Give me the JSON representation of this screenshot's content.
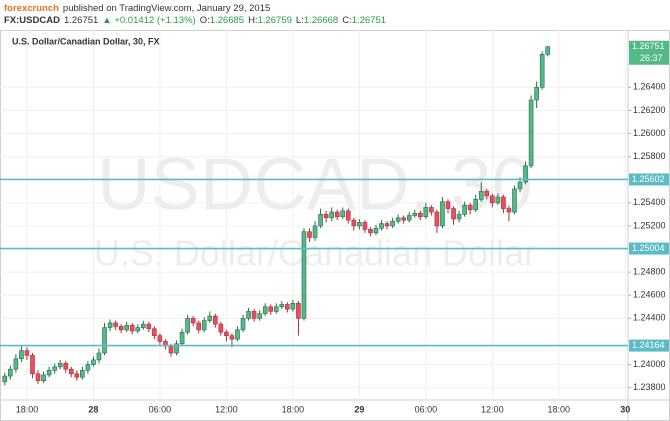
{
  "header": {
    "author": "forexcrunch",
    "published": "published on TradingView.com, January 29, 2015",
    "symbol": "FX:USDCAD",
    "last": "1.26751",
    "change": "▲ +0.01412 (+1.13%)",
    "ohlc": [
      {
        "label": "O:",
        "value": "1.26685"
      },
      {
        "label": "H:",
        "value": "1.26759"
      },
      {
        "label": "L:",
        "value": "1.26668"
      },
      {
        "label": "C:",
        "value": "1.26751"
      }
    ]
  },
  "chart_data": {
    "type": "candlestick",
    "title": "U.S. Dollar/Canadian Dollar, 30, FX",
    "watermark": [
      "USDCAD, 30",
      "U.S. Dollar/Canadian Dollar"
    ],
    "up_color": "#53b987",
    "down_color": "#eb4d5c",
    "level_color": "#5bbcc6",
    "countdown": "26:37",
    "categories": [
      null,
      null,
      null,
      null,
      "18:00",
      null,
      null,
      null,
      null,
      null,
      null,
      null,
      null,
      null,
      null,
      null,
      "28",
      null,
      null,
      null,
      null,
      null,
      null,
      null,
      null,
      null,
      null,
      null,
      "06:00",
      null,
      null,
      null,
      null,
      null,
      null,
      null,
      null,
      null,
      null,
      null,
      "12:00",
      null,
      null,
      null,
      null,
      null,
      null,
      null,
      null,
      null,
      null,
      null,
      "18:00",
      null,
      null,
      null,
      null,
      null,
      null,
      null,
      null,
      null,
      null,
      null,
      "29",
      null,
      null,
      null,
      null,
      null,
      null,
      null,
      null,
      null,
      null,
      null,
      "06:00",
      null,
      null,
      null,
      null,
      null,
      null,
      null,
      null,
      null,
      null,
      null,
      "12:00",
      null,
      null,
      null,
      null,
      null,
      null,
      null,
      null,
      null,
      null,
      null,
      "18:00",
      null,
      null,
      null,
      null,
      null,
      null,
      null,
      null,
      null,
      null,
      null,
      "30"
    ],
    "open": [
      1.2385,
      1.239,
      1.2396,
      1.2405,
      1.2412,
      1.2408,
      1.2392,
      1.2386,
      1.2391,
      1.2395,
      1.2398,
      1.2401,
      1.2396,
      1.2392,
      1.2389,
      1.2395,
      1.24,
      1.2404,
      1.241,
      1.2432,
      1.2436,
      1.2433,
      1.243,
      1.2434,
      1.2429,
      1.2432,
      1.2435,
      1.2431,
      1.2425,
      1.242,
      1.2416,
      1.241,
      1.2418,
      1.2428,
      1.244,
      1.2436,
      1.243,
      1.2438,
      1.2442,
      1.2435,
      1.2428,
      1.2425,
      1.2422,
      1.243,
      1.244,
      1.2446,
      1.244,
      1.2444,
      1.245,
      1.2446,
      1.245,
      1.2452,
      1.2448,
      1.2453,
      1.244,
      1.2515,
      1.251,
      1.252,
      1.253,
      1.2527,
      1.2532,
      1.2528,
      1.2533,
      1.2525,
      1.252,
      1.2523,
      1.2517,
      1.2514,
      1.2518,
      1.2522,
      1.252,
      1.2524,
      1.2527,
      1.2525,
      1.2529,
      1.2531,
      1.2528,
      1.2536,
      1.2532,
      1.252,
      1.2541,
      1.2535,
      1.2526,
      1.253,
      1.2538,
      1.2534,
      1.2543,
      1.255,
      1.2546,
      1.254,
      1.2545,
      1.2535,
      1.2532,
      1.2552,
      1.2558,
      1.2572,
      1.2629,
      1.264,
      1.26685,
      null,
      null,
      null,
      null,
      null,
      null,
      null,
      null,
      null,
      null,
      null,
      null,
      null,
      null
    ],
    "high": [
      1.2393,
      1.2399,
      1.2409,
      1.2416,
      1.2415,
      1.241,
      1.2395,
      1.2394,
      1.2398,
      1.2401,
      1.2404,
      1.2403,
      1.2398,
      1.2395,
      1.2398,
      1.2403,
      1.2407,
      1.2414,
      1.2436,
      1.2439,
      1.2438,
      1.2435,
      1.2437,
      1.2436,
      1.2435,
      1.2438,
      1.2437,
      1.2433,
      1.2427,
      1.2422,
      1.2418,
      1.2421,
      1.2431,
      1.2443,
      1.2442,
      1.2438,
      1.2441,
      1.2446,
      1.2444,
      1.2437,
      1.243,
      1.2427,
      1.2433,
      1.2443,
      1.2449,
      1.2448,
      1.2447,
      1.2453,
      1.2452,
      1.2453,
      1.2455,
      1.2454,
      1.2456,
      1.2455,
      1.2518,
      1.2518,
      1.2524,
      1.2535,
      1.2533,
      1.2536,
      1.2534,
      1.2536,
      1.2535,
      1.2527,
      1.2526,
      1.2525,
      1.2519,
      1.2521,
      1.2525,
      1.2524,
      1.2527,
      1.253,
      1.2529,
      1.2532,
      1.2534,
      1.2533,
      1.254,
      1.2538,
      1.2534,
      1.2545,
      1.2543,
      1.2537,
      1.2533,
      1.2541,
      1.254,
      1.2547,
      1.2558,
      1.2552,
      1.2548,
      1.2548,
      1.2547,
      1.2537,
      1.2555,
      1.2562,
      1.2576,
      1.2633,
      1.2645,
      1.2671,
      1.26759,
      null,
      null,
      null,
      null,
      null,
      null,
      null,
      null,
      null,
      null,
      null,
      null,
      null,
      null
    ],
    "low": [
      1.2382,
      1.2387,
      1.2393,
      1.2402,
      1.2404,
      1.2388,
      1.2383,
      1.2384,
      1.2389,
      1.2392,
      1.2396,
      1.2393,
      1.2389,
      1.2386,
      1.2387,
      1.2392,
      1.2398,
      1.2401,
      1.2408,
      1.2429,
      1.243,
      1.2427,
      1.2428,
      1.2426,
      1.2427,
      1.243,
      1.2428,
      1.2422,
      1.2417,
      1.2413,
      1.2407,
      1.2408,
      1.2416,
      1.2426,
      1.2433,
      1.2427,
      1.2428,
      1.2436,
      1.2432,
      1.2425,
      1.242,
      1.2415,
      1.242,
      1.2428,
      1.2438,
      1.2437,
      1.2438,
      1.2442,
      1.2443,
      1.2444,
      1.2448,
      1.2445,
      1.2446,
      1.2425,
      1.2438,
      1.2506,
      1.2507,
      1.2518,
      1.2523,
      1.2524,
      1.2525,
      1.2526,
      1.2522,
      1.2516,
      1.2517,
      1.2514,
      1.2511,
      1.2512,
      1.2516,
      1.2517,
      1.2518,
      1.2522,
      1.2522,
      1.2523,
      1.2527,
      1.2525,
      1.2526,
      1.2529,
      1.2514,
      1.2518,
      1.2531,
      1.2521,
      1.2523,
      1.2528,
      1.253,
      1.2532,
      1.2541,
      1.2543,
      1.2536,
      1.2538,
      1.2531,
      1.2524,
      1.253,
      1.2549,
      1.2556,
      1.257,
      1.2622,
      1.2638,
      1.26668,
      null,
      null,
      null,
      null,
      null,
      null,
      null,
      null,
      null,
      null,
      null,
      null,
      null,
      null
    ],
    "close": [
      1.239,
      1.2396,
      1.2405,
      1.2412,
      1.2408,
      1.2392,
      1.2386,
      1.2391,
      1.2395,
      1.2398,
      1.2401,
      1.2396,
      1.2392,
      1.2389,
      1.2395,
      1.24,
      1.2404,
      1.241,
      1.2432,
      1.2436,
      1.2433,
      1.243,
      1.2434,
      1.2429,
      1.2432,
      1.2435,
      1.2431,
      1.2425,
      1.242,
      1.2416,
      1.241,
      1.2418,
      1.2428,
      1.244,
      1.2436,
      1.243,
      1.2438,
      1.2442,
      1.2435,
      1.2428,
      1.2425,
      1.2422,
      1.243,
      1.244,
      1.2446,
      1.244,
      1.2444,
      1.245,
      1.2446,
      1.245,
      1.2452,
      1.2448,
      1.2453,
      1.244,
      1.2515,
      1.251,
      1.252,
      1.253,
      1.2527,
      1.2532,
      1.2528,
      1.2533,
      1.2525,
      1.252,
      1.2523,
      1.2517,
      1.2514,
      1.2518,
      1.2522,
      1.252,
      1.2524,
      1.2527,
      1.2525,
      1.2529,
      1.2531,
      1.2528,
      1.2536,
      1.2532,
      1.252,
      1.2541,
      1.2535,
      1.2526,
      1.253,
      1.2538,
      1.2534,
      1.2543,
      1.255,
      1.2546,
      1.254,
      1.2545,
      1.2535,
      1.2532,
      1.2552,
      1.2558,
      1.2572,
      1.2629,
      1.264,
      1.26685,
      1.26751,
      null,
      null,
      null,
      null,
      null,
      null,
      null,
      null,
      null,
      null,
      null,
      null,
      null,
      null
    ],
    "levels": [
      1.25602,
      1.25004,
      1.24164
    ],
    "ylim": [
      1.23693,
      1.26896
    ],
    "yticks": [
      {
        "value": 1.238,
        "label": "1.23800"
      },
      {
        "value": 1.24,
        "label": "1.24000"
      },
      {
        "value": 1.244,
        "label": "1.24400"
      },
      {
        "value": 1.246,
        "label": "1.24600"
      },
      {
        "value": 1.248,
        "label": "1.24800"
      },
      {
        "value": 1.252,
        "label": "1.25200"
      },
      {
        "value": 1.254,
        "label": "1.25400"
      },
      {
        "value": 1.258,
        "label": "1.25800"
      },
      {
        "value": 1.26,
        "label": "1.26000"
      },
      {
        "value": 1.262,
        "label": "1.26200"
      },
      {
        "value": 1.264,
        "label": "1.26400"
      }
    ],
    "grid": true
  }
}
